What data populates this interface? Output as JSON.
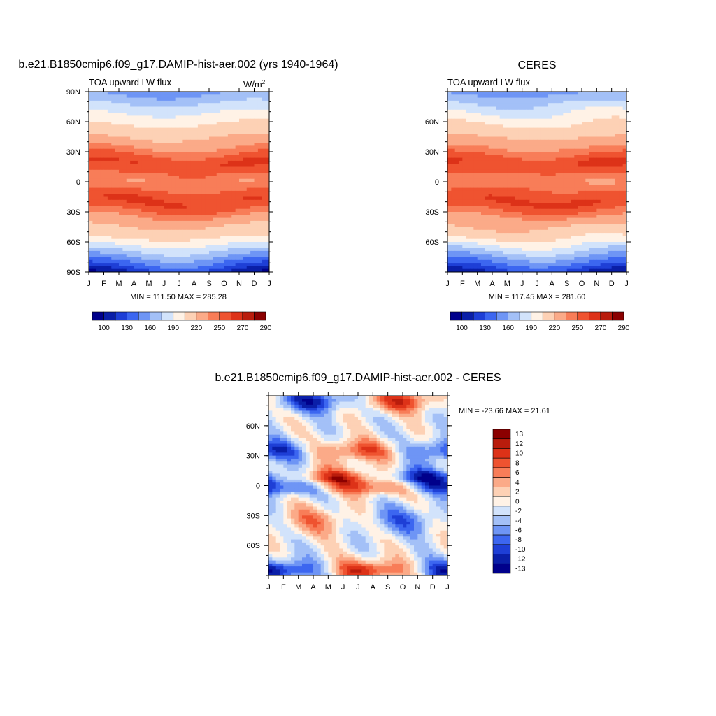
{
  "panels": {
    "model": {
      "title": "b.e21.B1850cmip6.f09_g17.DAMIP-hist-aer.002 (yrs 1940-1964)",
      "subtitle_left": "TOA upward LW flux",
      "units_base": "W/m",
      "units_exp": "2",
      "stats": "MIN = 111.50 MAX = 285.28"
    },
    "obs": {
      "title": "CERES",
      "subtitle_left": "TOA upward LW flux",
      "stats": "MIN = 117.45 MAX = 281.60"
    },
    "diff": {
      "title": "b.e21.B1850cmip6.f09_g17.DAMIP-hist-aer.002 - CERES",
      "stats": "MIN = -23.66 MAX =  21.61"
    }
  },
  "axes": {
    "months": [
      "J",
      "F",
      "M",
      "A",
      "M",
      "J",
      "J",
      "A",
      "S",
      "O",
      "N",
      "D",
      "J"
    ],
    "lat_labels_model": [
      "90N",
      "60N",
      "30N",
      "0",
      "30S",
      "60S",
      "90S"
    ],
    "lat_labels_obs": [
      "60N",
      "30N",
      "0",
      "30S",
      "60S"
    ]
  },
  "colorbar_abs": {
    "colors": [
      "#00008b",
      "#0a1fa8",
      "#1e3fd6",
      "#3c66f0",
      "#6e95f5",
      "#a3c0f7",
      "#d2e3fb",
      "#fff2e6",
      "#fdd1b5",
      "#fbaa88",
      "#f87d58",
      "#ef5330",
      "#dd3218",
      "#b91c0c",
      "#8b0000"
    ],
    "labels": [
      "100",
      "130",
      "160",
      "190",
      "220",
      "250",
      "270",
      "290"
    ]
  },
  "colorbar_diff": {
    "colors": [
      "#8b0000",
      "#b91c0c",
      "#dd3218",
      "#ef5330",
      "#f87d58",
      "#fbaa88",
      "#fdd1b5",
      "#fff2e6",
      "#d2e3fb",
      "#a3c0f7",
      "#6e95f5",
      "#3c66f0",
      "#1e3fd6",
      "#0a1fa8",
      "#00008b"
    ],
    "labels": [
      "13",
      "12",
      "10",
      "8",
      "6",
      "4",
      "2",
      "0",
      "-2",
      "-4",
      "-6",
      "-8",
      "-10",
      "-12",
      "-13"
    ]
  },
  "chart_data": [
    {
      "type": "heatmap",
      "title": "b.e21.B1850cmip6.f09_g17.DAMIP-hist-aer.002 (yrs 1940-1964)",
      "subtitle": "TOA upward LW flux",
      "units": "W/m2",
      "x_ticks": [
        "J",
        "F",
        "M",
        "A",
        "M",
        "J",
        "J",
        "A",
        "S",
        "O",
        "N",
        "D",
        "J"
      ],
      "y_ticks": [
        "90N",
        "60N",
        "30N",
        "0",
        "30S",
        "60S",
        "90S"
      ],
      "ylim": [
        -90,
        90
      ],
      "min": 111.5,
      "max": 285.28
    },
    {
      "type": "heatmap",
      "title": "CERES",
      "subtitle": "TOA upward LW flux",
      "x_ticks": [
        "J",
        "F",
        "M",
        "A",
        "M",
        "J",
        "J",
        "A",
        "S",
        "O",
        "N",
        "D",
        "J"
      ],
      "y_ticks": [
        "60N",
        "30N",
        "0",
        "30S",
        "60S"
      ],
      "min": 117.45,
      "max": 281.6
    },
    {
      "type": "heatmap",
      "title": "b.e21.B1850cmip6.f09_g17.DAMIP-hist-aer.002 - CERES",
      "x_ticks": [
        "J",
        "F",
        "M",
        "A",
        "M",
        "J",
        "J",
        "A",
        "S",
        "O",
        "N",
        "D",
        "J"
      ],
      "y_ticks": [
        "60N",
        "30N",
        "0",
        "30S",
        "60S"
      ],
      "min": -23.66,
      "max": 21.61
    }
  ]
}
